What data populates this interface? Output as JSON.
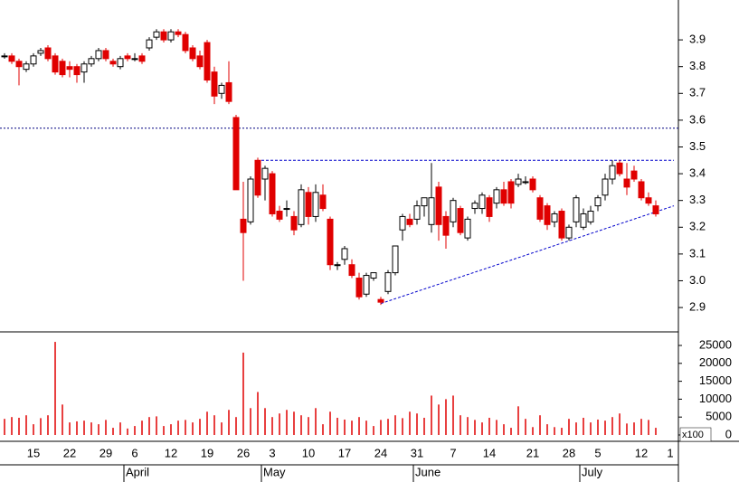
{
  "chart_data": [
    {
      "type": "candlestick",
      "categories": [
        null,
        null,
        null,
        null,
        "15",
        null,
        null,
        null,
        null,
        "22",
        null,
        null,
        null,
        null,
        "29",
        null,
        null,
        null,
        "6",
        null,
        null,
        null,
        null,
        "12",
        null,
        null,
        null,
        null,
        "19",
        null,
        null,
        null,
        null,
        "26",
        null,
        null,
        null,
        "3",
        null,
        null,
        null,
        null,
        "10",
        null,
        null,
        null,
        null,
        "17",
        null,
        null,
        null,
        null,
        "24",
        null,
        null,
        null,
        null,
        "31",
        null,
        null,
        null,
        null,
        "7",
        null,
        null,
        null,
        null,
        "14",
        null,
        null,
        null,
        null,
        null,
        "21",
        null,
        null,
        null,
        null,
        "28",
        null,
        null,
        null,
        "5",
        null,
        null,
        null,
        null,
        null,
        "12",
        null,
        null,
        null,
        "1"
      ],
      "month_labels": [
        null,
        null,
        null,
        null,
        null,
        null,
        null,
        null,
        null,
        null,
        null,
        null,
        null,
        null,
        null,
        null,
        null,
        "April",
        null,
        null,
        null,
        null,
        null,
        null,
        null,
        null,
        null,
        null,
        null,
        null,
        null,
        null,
        null,
        null,
        null,
        null,
        "May",
        null,
        null,
        null,
        null,
        null,
        null,
        null,
        null,
        null,
        null,
        null,
        null,
        null,
        null,
        null,
        null,
        null,
        null,
        null,
        null,
        "June",
        null,
        null,
        null,
        null,
        null,
        null,
        null,
        null,
        null,
        null,
        null,
        null,
        null,
        null,
        null,
        null,
        null,
        null,
        null,
        null,
        null,
        null,
        "July",
        null,
        null,
        null,
        null,
        null,
        null,
        null,
        null,
        null,
        null,
        null,
        null
      ],
      "candles": [
        {
          "open": 3.84,
          "high": 3.85,
          "low": 3.83,
          "close": 3.84
        },
        {
          "open": 3.84,
          "high": 3.85,
          "low": 3.81,
          "close": 3.82
        },
        {
          "open": 3.82,
          "high": 3.83,
          "low": 3.73,
          "close": 3.8
        },
        {
          "open": 3.79,
          "high": 3.82,
          "low": 3.78,
          "close": 3.81
        },
        {
          "open": 3.81,
          "high": 3.85,
          "low": 3.8,
          "close": 3.84
        },
        {
          "open": 3.85,
          "high": 3.87,
          "low": 3.84,
          "close": 3.86
        },
        {
          "open": 3.87,
          "high": 3.88,
          "low": 3.82,
          "close": 3.83
        },
        {
          "open": 3.84,
          "high": 3.85,
          "low": 3.77,
          "close": 3.78
        },
        {
          "open": 3.82,
          "high": 3.83,
          "low": 3.76,
          "close": 3.77
        },
        {
          "open": 3.8,
          "high": 3.82,
          "low": 3.76,
          "close": 3.79
        },
        {
          "open": 3.8,
          "high": 3.81,
          "low": 3.74,
          "close": 3.77
        },
        {
          "open": 3.78,
          "high": 3.82,
          "low": 3.74,
          "close": 3.81
        },
        {
          "open": 3.81,
          "high": 3.84,
          "low": 3.8,
          "close": 3.83
        },
        {
          "open": 3.83,
          "high": 3.87,
          "low": 3.82,
          "close": 3.86
        },
        {
          "open": 3.86,
          "high": 3.87,
          "low": 3.82,
          "close": 3.83
        },
        {
          "open": 3.82,
          "high": 3.83,
          "low": 3.8,
          "close": 3.81
        },
        {
          "open": 3.8,
          "high": 3.84,
          "low": 3.79,
          "close": 3.83
        },
        {
          "open": 3.84,
          "high": 3.85,
          "low": 3.82,
          "close": 3.83
        },
        {
          "open": 3.83,
          "high": 3.85,
          "low": 3.82,
          "close": 3.83
        },
        {
          "open": 3.84,
          "high": 3.85,
          "low": 3.81,
          "close": 3.82
        },
        {
          "open": 3.87,
          "high": 3.91,
          "low": 3.86,
          "close": 3.9
        },
        {
          "open": 3.91,
          "high": 3.94,
          "low": 3.9,
          "close": 3.93
        },
        {
          "open": 3.93,
          "high": 3.94,
          "low": 3.89,
          "close": 3.9
        },
        {
          "open": 3.9,
          "high": 3.94,
          "low": 3.89,
          "close": 3.93
        },
        {
          "open": 3.93,
          "high": 3.94,
          "low": 3.91,
          "close": 3.92
        },
        {
          "open": 3.92,
          "high": 3.93,
          "low": 3.85,
          "close": 3.86
        },
        {
          "open": 3.87,
          "high": 3.88,
          "low": 3.82,
          "close": 3.83
        },
        {
          "open": 3.84,
          "high": 3.86,
          "low": 3.79,
          "close": 3.8
        },
        {
          "open": 3.89,
          "high": 3.9,
          "low": 3.74,
          "close": 3.75
        },
        {
          "open": 3.78,
          "high": 3.8,
          "low": 3.66,
          "close": 3.69
        },
        {
          "open": 3.7,
          "high": 3.74,
          "low": 3.68,
          "close": 3.73
        },
        {
          "open": 3.74,
          "high": 3.82,
          "low": 3.66,
          "close": 3.67
        },
        {
          "open": 3.61,
          "high": 3.62,
          "low": 3.34,
          "close": 3.34
        },
        {
          "open": 3.23,
          "high": 3.37,
          "low": 3.0,
          "close": 3.18
        },
        {
          "open": 3.22,
          "high": 3.39,
          "low": 3.21,
          "close": 3.38
        },
        {
          "open": 3.45,
          "high": 3.46,
          "low": 3.31,
          "close": 3.32
        },
        {
          "open": 3.38,
          "high": 3.43,
          "low": 3.3,
          "close": 3.42
        },
        {
          "open": 3.4,
          "high": 3.41,
          "low": 3.24,
          "close": 3.25
        },
        {
          "open": 3.26,
          "high": 3.28,
          "low": 3.22,
          "close": 3.23
        },
        {
          "open": 3.27,
          "high": 3.3,
          "low": 3.24,
          "close": 3.27
        },
        {
          "open": 3.24,
          "high": 3.26,
          "low": 3.17,
          "close": 3.19
        },
        {
          "open": 3.21,
          "high": 3.36,
          "low": 3.2,
          "close": 3.34
        },
        {
          "open": 3.33,
          "high": 3.35,
          "low": 3.21,
          "close": 3.24
        },
        {
          "open": 3.24,
          "high": 3.36,
          "low": 3.22,
          "close": 3.33
        },
        {
          "open": 3.32,
          "high": 3.36,
          "low": 3.26,
          "close": 3.27
        },
        {
          "open": 3.23,
          "high": 3.24,
          "low": 3.04,
          "close": 3.06
        },
        {
          "open": 3.06,
          "high": 3.07,
          "low": 3.04,
          "close": 3.06
        },
        {
          "open": 3.08,
          "high": 3.13,
          "low": 3.06,
          "close": 3.12
        },
        {
          "open": 3.06,
          "high": 3.08,
          "low": 3.01,
          "close": 3.02
        },
        {
          "open": 3.01,
          "high": 3.03,
          "low": 2.93,
          "close": 2.94
        },
        {
          "open": 2.95,
          "high": 3.03,
          "low": 2.94,
          "close": 3.02
        },
        {
          "open": 3.01,
          "high": 3.03,
          "low": 3.0,
          "close": 3.03
        },
        {
          "open": 2.93,
          "high": 2.94,
          "low": 2.91,
          "close": 2.92
        },
        {
          "open": 2.96,
          "high": 3.04,
          "low": 2.95,
          "close": 3.03
        },
        {
          "open": 3.03,
          "high": 3.13,
          "low": 3.02,
          "close": 3.13
        },
        {
          "open": 3.19,
          "high": 3.25,
          "low": 3.15,
          "close": 3.24
        },
        {
          "open": 3.23,
          "high": 3.25,
          "low": 3.2,
          "close": 3.21
        },
        {
          "open": 3.23,
          "high": 3.3,
          "low": 3.21,
          "close": 3.28
        },
        {
          "open": 3.28,
          "high": 3.31,
          "low": 3.24,
          "close": 3.31
        },
        {
          "open": 3.21,
          "high": 3.44,
          "low": 3.18,
          "close": 3.31
        },
        {
          "open": 3.35,
          "high": 3.37,
          "low": 3.15,
          "close": 3.21
        },
        {
          "open": 3.24,
          "high": 3.26,
          "low": 3.12,
          "close": 3.17
        },
        {
          "open": 3.22,
          "high": 3.31,
          "low": 3.2,
          "close": 3.3
        },
        {
          "open": 3.27,
          "high": 3.28,
          "low": 3.17,
          "close": 3.18
        },
        {
          "open": 3.16,
          "high": 3.24,
          "low": 3.15,
          "close": 3.23
        },
        {
          "open": 3.27,
          "high": 3.3,
          "low": 3.25,
          "close": 3.29
        },
        {
          "open": 3.27,
          "high": 3.33,
          "low": 3.25,
          "close": 3.32
        },
        {
          "open": 3.31,
          "high": 3.32,
          "low": 3.22,
          "close": 3.24
        },
        {
          "open": 3.29,
          "high": 3.35,
          "low": 3.27,
          "close": 3.34
        },
        {
          "open": 3.34,
          "high": 3.37,
          "low": 3.28,
          "close": 3.29
        },
        {
          "open": 3.37,
          "high": 3.38,
          "low": 3.27,
          "close": 3.29
        },
        {
          "open": 3.36,
          "high": 3.4,
          "low": 3.35,
          "close": 3.38
        },
        {
          "open": 3.37,
          "high": 3.39,
          "low": 3.36,
          "close": 3.37
        },
        {
          "open": 3.38,
          "high": 3.39,
          "low": 3.33,
          "close": 3.34
        },
        {
          "open": 3.31,
          "high": 3.32,
          "low": 3.22,
          "close": 3.23
        },
        {
          "open": 3.28,
          "high": 3.29,
          "low": 3.19,
          "close": 3.21
        },
        {
          "open": 3.22,
          "high": 3.26,
          "low": 3.2,
          "close": 3.25
        },
        {
          "open": 3.26,
          "high": 3.27,
          "low": 3.15,
          "close": 3.16
        },
        {
          "open": 3.16,
          "high": 3.21,
          "low": 3.15,
          "close": 3.2
        },
        {
          "open": 3.22,
          "high": 3.32,
          "low": 3.2,
          "close": 3.31
        },
        {
          "open": 3.2,
          "high": 3.27,
          "low": 3.19,
          "close": 3.25
        },
        {
          "open": 3.22,
          "high": 3.28,
          "low": 3.21,
          "close": 3.26
        },
        {
          "open": 3.28,
          "high": 3.32,
          "low": 3.26,
          "close": 3.31
        },
        {
          "open": 3.32,
          "high": 3.4,
          "low": 3.3,
          "close": 3.38
        },
        {
          "open": 3.38,
          "high": 3.45,
          "low": 3.36,
          "close": 3.43
        },
        {
          "open": 3.44,
          "high": 3.45,
          "low": 3.39,
          "close": 3.4
        },
        {
          "open": 3.38,
          "high": 3.44,
          "low": 3.32,
          "close": 3.35
        },
        {
          "open": 3.41,
          "high": 3.43,
          "low": 3.37,
          "close": 3.38
        },
        {
          "open": 3.37,
          "high": 3.38,
          "low": 3.3,
          "close": 3.31
        },
        {
          "open": 3.31,
          "high": 3.33,
          "low": 3.28,
          "close": 3.29
        },
        {
          "open": 3.28,
          "high": 3.3,
          "low": 3.24,
          "close": 3.25
        },
        null,
        null
      ],
      "up_color": "#ffffff",
      "down_color": "#e00000",
      "ylim": [
        2.809,
        4.049
      ],
      "yticks": [
        2.9,
        {
          "value": 3,
          "label": "3.0"
        },
        3.1,
        3.2,
        3.3,
        3.4,
        3.5,
        3.6,
        3.7,
        3.8,
        3.9
      ],
      "reference_lines": [
        {
          "value": 3.57,
          "color": "#000080"
        }
      ],
      "trend_lines": [
        {
          "from": [
            35.5,
            3.45
          ],
          "to": [
            92.5,
            3.45
          ],
          "color": "#0000cc"
        },
        {
          "from": [
            52,
            2.915
          ],
          "to": [
            92.5,
            3.28
          ],
          "color": "#0000cc"
        }
      ]
    },
    {
      "type": "bar",
      "values": [
        4500,
        5000,
        4800,
        5500,
        3000,
        4700,
        5500,
        26000,
        8500,
        3500,
        3800,
        4000,
        3500,
        3000,
        4200,
        2000,
        3500,
        1800,
        2500,
        4000,
        5000,
        5200,
        2500,
        3000,
        4000,
        4200,
        3500,
        4500,
        6500,
        5500,
        3500,
        7000,
        5000,
        23000,
        7500,
        12000,
        7500,
        5000,
        6000,
        7000,
        6500,
        5500,
        5000,
        7500,
        3000,
        6500,
        4800,
        4300,
        4000,
        5000,
        4000,
        2500,
        4200,
        4500,
        5500,
        4700,
        6500,
        6000,
        4800,
        11000,
        8500,
        10000,
        11000,
        5500,
        5000,
        4200,
        3500,
        4800,
        4200,
        3000,
        2000,
        8000,
        4500,
        2200,
        5500,
        3000,
        2200,
        2000,
        4500,
        3500,
        4800,
        3500,
        4300,
        4000,
        5000,
        6000,
        3200,
        3500,
        4500,
        4200,
        2000,
        null,
        null
      ],
      "color": "#e00000",
      "unit_label": "x100",
      "ylim": [
        -1770,
        28540
      ],
      "yticks": [
        0,
        5000,
        10000,
        15000,
        20000,
        25000
      ]
    }
  ]
}
